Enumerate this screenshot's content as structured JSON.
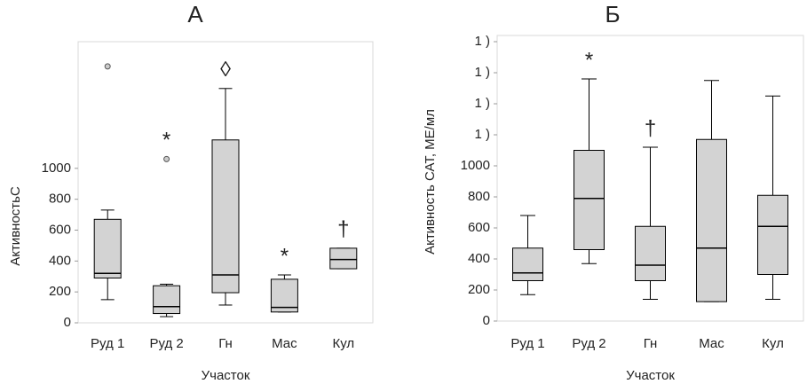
{
  "chart_data": [
    {
      "type": "box",
      "title": "А",
      "xlabel": "Участок",
      "ylabel": "АктивностьС",
      "categories": [
        "Руд 1",
        "Руд 2",
        "Гн",
        "Мас",
        "Кул"
      ],
      "boxes": [
        {
          "whisker_low": 150,
          "q1": 290,
          "median": 320,
          "q3": 670,
          "whisker_high": 730,
          "outliers": [
            1660
          ]
        },
        {
          "whisker_low": 40,
          "q1": 60,
          "median": 105,
          "q3": 240,
          "whisker_high": 250,
          "outliers": [
            1060
          ]
        },
        {
          "whisker_low": 115,
          "q1": 195,
          "median": 310,
          "q3": 1184,
          "whisker_high": 1517,
          "outliers": []
        },
        {
          "whisker_low": 70,
          "q1": 70,
          "median": 100,
          "q3": 282,
          "whisker_high": 310,
          "outliers": []
        },
        {
          "whisker_low": 350,
          "q1": 350,
          "median": 410,
          "q3": 483,
          "whisker_high": 483,
          "outliers": []
        }
      ],
      "annotations": [
        null,
        "*",
        "◊",
        "*",
        "†"
      ],
      "color": "#d3d3d3",
      "ylim": [
        0,
        1820
      ],
      "yticks": [
        0,
        200,
        400,
        600,
        800,
        1000
      ]
    },
    {
      "type": "box",
      "title": "Б",
      "xlabel": "Участок",
      "ylabel": "Активность САТ, МЕ/мл",
      "categories": [
        "Руд 1",
        "Руд 2",
        "Гн",
        "Мас",
        "Кул"
      ],
      "boxes": [
        {
          "whisker_low": 170,
          "q1": 260,
          "median": 310,
          "q3": 470,
          "whisker_high": 680,
          "outliers": []
        },
        {
          "whisker_low": 370,
          "q1": 460,
          "median": 790,
          "q3": 1100,
          "whisker_high": 1560,
          "outliers": []
        },
        {
          "whisker_low": 140,
          "q1": 260,
          "median": 360,
          "q3": 610,
          "whisker_high": 1120,
          "outliers": []
        },
        {
          "whisker_low": 125,
          "q1": 125,
          "median": 470,
          "q3": 1170,
          "whisker_high": 1550,
          "outliers": []
        },
        {
          "whisker_low": 140,
          "q1": 300,
          "median": 610,
          "q3": 810,
          "whisker_high": 1450,
          "outliers": []
        }
      ],
      "annotations": [
        null,
        "*",
        "†",
        null,
        null
      ],
      "color": "#d3d3d3",
      "ylim": [
        0,
        1840
      ],
      "yticks": [
        0,
        200,
        400,
        600,
        800,
        1000,
        {
          "value": 1200,
          "label": "1 )"
        },
        {
          "value": 1400,
          "label": "1 )"
        },
        {
          "value": 1600,
          "label": "1 )"
        },
        {
          "value": 1800,
          "label": "1 )"
        }
      ]
    }
  ]
}
